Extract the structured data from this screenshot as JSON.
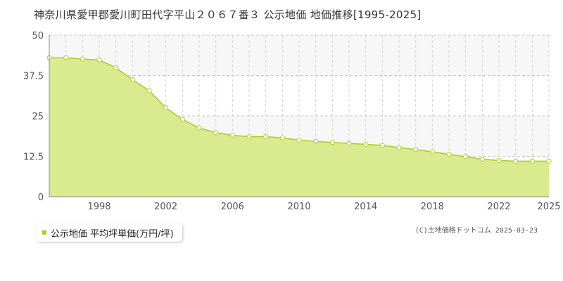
{
  "title": "神奈川県愛甲郡愛川町田代字平山２０６７番３ 公示地価 地価推移[1995-2025]",
  "legend": {
    "label": "公示地価 平均坪単価(万円/坪)"
  },
  "credit": "(C)土地価格ドットコム 2025-03-23",
  "colors": {
    "fill": "#d9eb8e",
    "line": "#a8cc2a",
    "point_stroke": "#b7d63e",
    "band": "#f7f7f7"
  },
  "chart_data": {
    "type": "area",
    "x": [
      1995,
      1996,
      1997,
      1998,
      1999,
      2000,
      2001,
      2002,
      2003,
      2004,
      2005,
      2006,
      2007,
      2008,
      2009,
      2010,
      2011,
      2012,
      2013,
      2014,
      2015,
      2016,
      2017,
      2018,
      2019,
      2020,
      2021,
      2022,
      2023,
      2024,
      2025
    ],
    "series": [
      {
        "name": "公示地価 平均坪単価(万円/坪)",
        "values": [
          43.0,
          43.0,
          42.6,
          42.3,
          39.9,
          36.2,
          32.8,
          27.5,
          23.9,
          21.3,
          19.8,
          19.0,
          18.6,
          18.6,
          18.2,
          17.5,
          17.1,
          16.8,
          16.5,
          16.2,
          15.9,
          15.2,
          14.6,
          13.9,
          13.1,
          12.4,
          11.6,
          11.2,
          11.0,
          11.0,
          11.0
        ]
      }
    ],
    "xlim": [
      1995,
      2025
    ],
    "ylim": [
      0,
      50
    ],
    "y_ticks": [
      0,
      12.5,
      25,
      37.5,
      50
    ],
    "y_tick_labels": [
      "0",
      "12.5",
      "25",
      "37.5",
      "50"
    ],
    "x_tick_labels": [
      "1998",
      "2002",
      "2006",
      "2010",
      "2014",
      "2018",
      "2022",
      "2025"
    ],
    "x_tick_values": [
      1998,
      2002,
      2006,
      2010,
      2014,
      2018,
      2022,
      2025
    ],
    "grid": true,
    "legend_position": "bottom-left"
  }
}
